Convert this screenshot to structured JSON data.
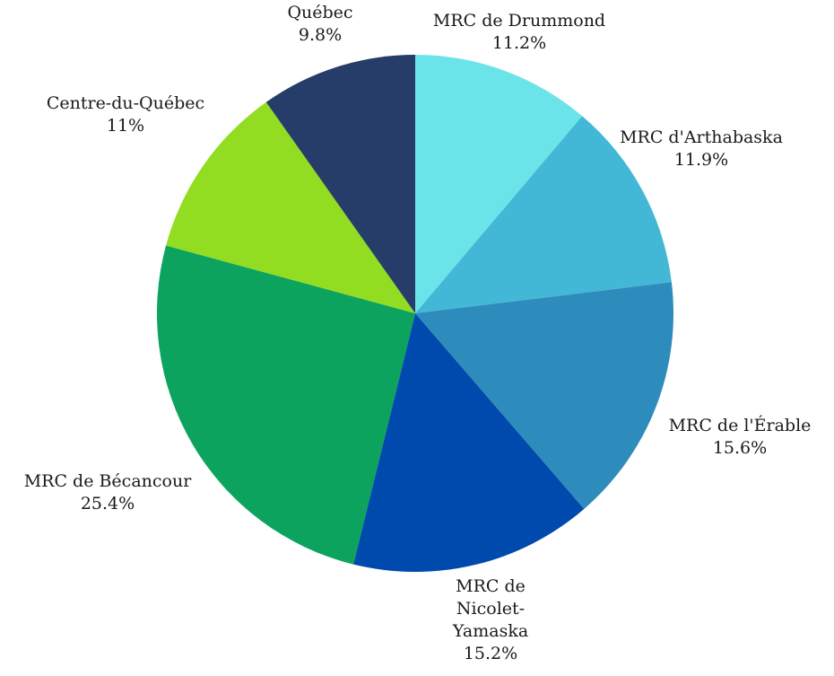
{
  "chart_data": {
    "type": "pie",
    "title": "",
    "start_angle_deg": 0,
    "direction": "clockwise",
    "slices": [
      {
        "label": "MRC de Drummond",
        "label_lines": [
          "MRC de Drummond"
        ],
        "value": 11.2,
        "display": "11.2%",
        "color": "#6ae4e8"
      },
      {
        "label": "MRC d'Arthabaska",
        "label_lines": [
          "MRC d'Arthabaska"
        ],
        "value": 11.9,
        "display": "11.9%",
        "color": "#42b8d6"
      },
      {
        "label": "MRC de l'Érable",
        "label_lines": [
          "MRC de l'Érable"
        ],
        "value": 15.6,
        "display": "15.6%",
        "color": "#2e8cbd"
      },
      {
        "label": "MRC de Nicolet-Yamaska",
        "label_lines": [
          "MRC de",
          "Nicolet-",
          "Yamaska"
        ],
        "value": 15.2,
        "display": "15.2%",
        "color": "#0049ad"
      },
      {
        "label": "MRC de Bécancour",
        "label_lines": [
          "MRC de Bécancour"
        ],
        "value": 25.4,
        "display": "25.4%",
        "color": "#0ca35f"
      },
      {
        "label": "Centre-du-Québec",
        "label_lines": [
          "Centre-du-Québec"
        ],
        "value": 11,
        "display": "11%",
        "color": "#92dc22"
      },
      {
        "label": "Québec",
        "label_lines": [
          "Québec"
        ],
        "value": 9.8,
        "display": "9.8%",
        "color": "#253d68"
      }
    ]
  }
}
